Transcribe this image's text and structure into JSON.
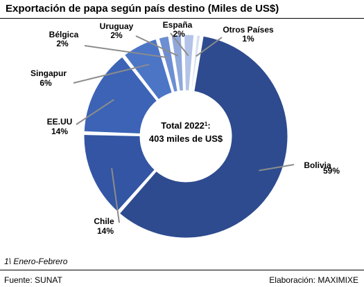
{
  "chart_data": {
    "type": "pie",
    "title": "Exportación de papa según país destino (Miles de US$)",
    "center_label": {
      "line1": "Total  2022",
      "superscript": "1",
      "suffix": ":",
      "line2": "403 miles de US$"
    },
    "slices": [
      {
        "name": "Bolivia",
        "label": "59%",
        "value": 59,
        "color": "#2e4b8f"
      },
      {
        "name": "Chile",
        "label": "14%",
        "value": 14,
        "color": "#3355a3"
      },
      {
        "name": "EE.UU",
        "label": "14%",
        "value": 14,
        "color": "#3c63b6"
      },
      {
        "name": "Singapur",
        "label": "6%",
        "value": 6,
        "color": "#4c75c6"
      },
      {
        "name": "Bélgica",
        "label": "2%",
        "value": 2,
        "color": "#6d8ed2"
      },
      {
        "name": "Uruguay",
        "label": "2%",
        "value": 2,
        "color": "#8fa8dc"
      },
      {
        "name": "España",
        "label": "2%",
        "value": 2,
        "color": "#b3c3e8"
      },
      {
        "name": "Otros Países",
        "label": "1%",
        "value": 1,
        "color": "#d5dff2"
      }
    ]
  },
  "footnote": "1\\ Enero-Febrero",
  "source": "Fuente: SUNAT",
  "credit": "Elaboración: MAXIMIXE"
}
